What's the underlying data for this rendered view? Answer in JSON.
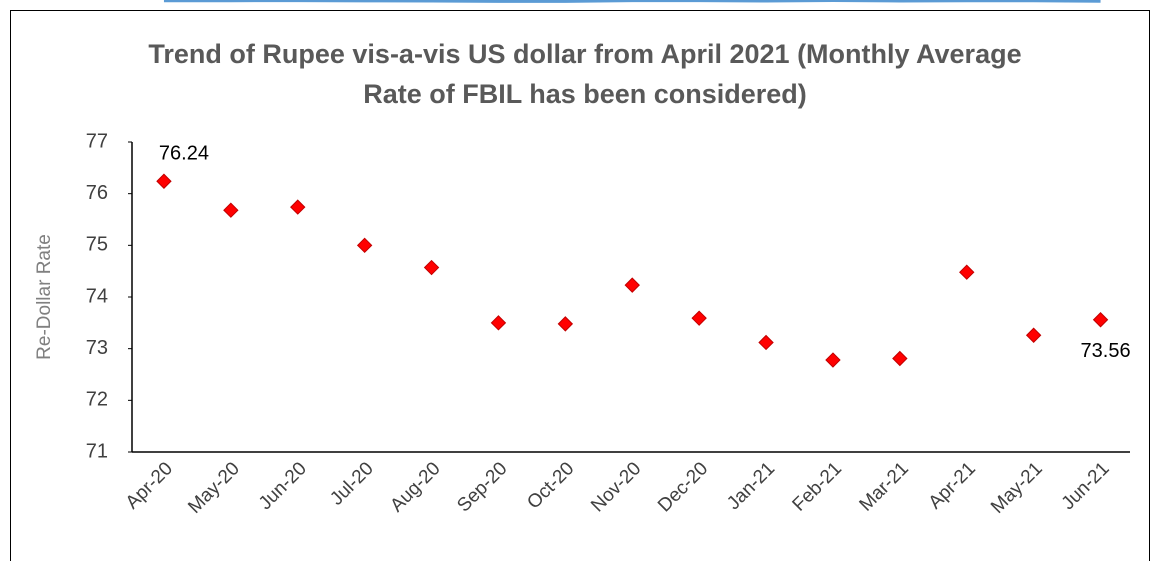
{
  "chart_data": {
    "type": "line",
    "title": "Trend of Rupee vis-a-vis US dollar from April 2021 (Monthly Average Rate of FBIL has been considered)",
    "y_label": "Re-Dollar Rate",
    "categories": [
      "Apr-20",
      "May-20",
      "Jun-20",
      "Jul-20",
      "Aug-20",
      "Sep-20",
      "Oct-20",
      "Nov-20",
      "Dec-20",
      "Jan-21",
      "Feb-21",
      "Mar-21",
      "Apr-21",
      "May-21",
      "Jun-21"
    ],
    "values": [
      76.24,
      75.68,
      75.74,
      75.0,
      74.57,
      73.5,
      73.48,
      74.23,
      73.59,
      73.12,
      72.78,
      72.81,
      74.48,
      73.26,
      73.56
    ],
    "value_labels": [
      "76.24",
      null,
      null,
      null,
      null,
      null,
      null,
      null,
      null,
      null,
      null,
      null,
      null,
      null,
      "73.56"
    ],
    "color": "#5b9bd5",
    "marker_color": "#ff0000",
    "ylim": [
      71,
      77
    ],
    "yticks": [
      71,
      72,
      73,
      74,
      75,
      76,
      77
    ],
    "grid": false
  }
}
